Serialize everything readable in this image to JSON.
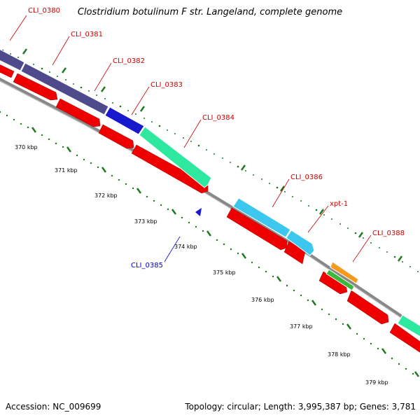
{
  "title": "Clostridium botulinum F str. Langeland, complete genome",
  "footer": {
    "accession": "Accession: NC_009699",
    "topology": "Topology: circular; Length: 3,995,387 bp; Genes: 3,781"
  },
  "colors": {
    "backbone": "#888888",
    "cds": "#ee0000",
    "tick": "#1f7a1f",
    "label_forward": "#cc0000",
    "label_reverse": "#0000cc",
    "gene_dark_blue": "#4f4a8c",
    "gene_blue": "#1818cc",
    "gene_mint": "#2ee8a0",
    "gene_sky": "#3cc8ee",
    "gene_orange": "#f59a1a",
    "gene_green": "#3cb83c"
  },
  "ruler_labels": [
    "370 kbp",
    "371 kbp",
    "372 kbp",
    "373 kbp",
    "374 kbp",
    "375 kbp",
    "376 kbp",
    "377 kbp",
    "378 kbp",
    "379 kbp"
  ],
  "gene_labels": {
    "cli0380": "CLI_0380",
    "cli0381": "CLI_0381",
    "cli0382": "CLI_0382",
    "cli0383": "CLI_0383",
    "cli0384": "CLI_0384",
    "cli0385": "CLI_0385",
    "cli0386": "CLI_0386",
    "xpt1": "xpt-1",
    "cli0388": "CLI_0388"
  }
}
